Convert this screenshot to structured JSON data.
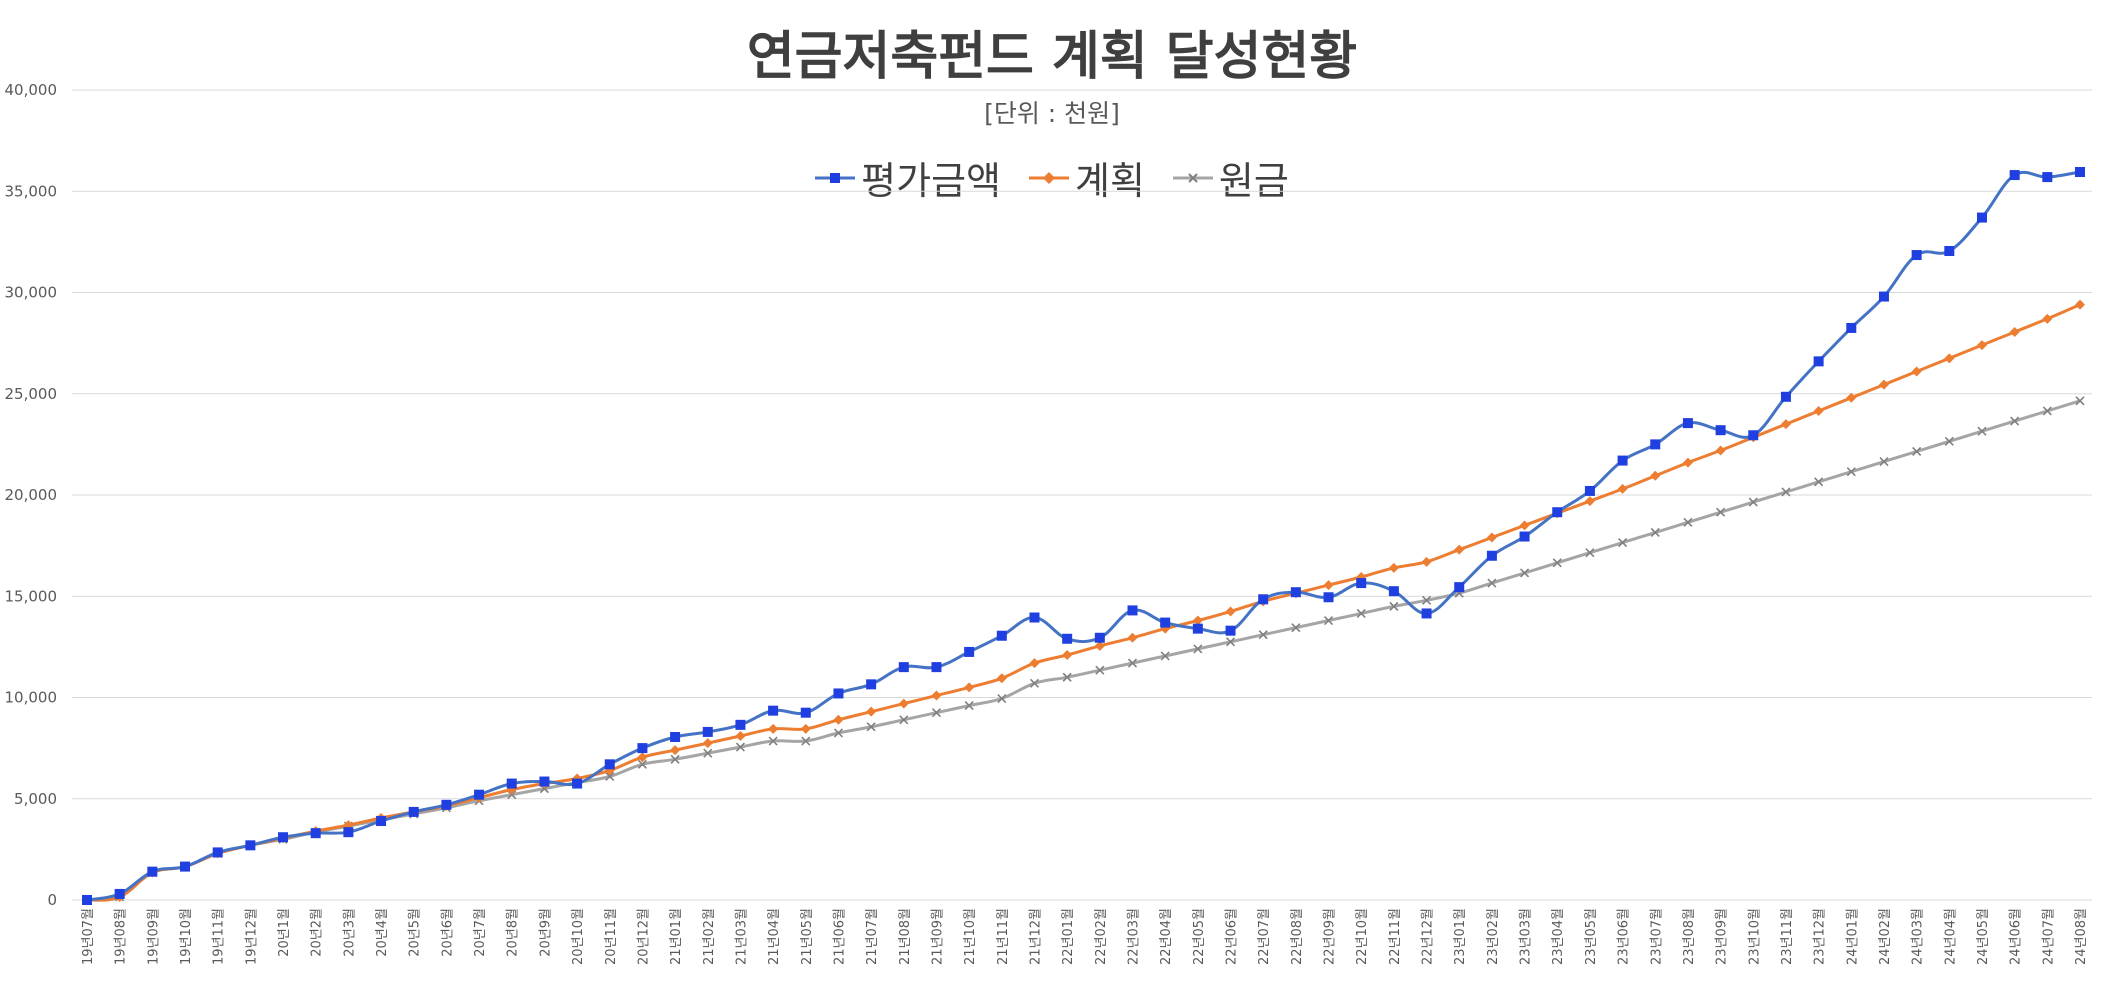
{
  "chart_data": {
    "type": "line",
    "title": "연금저축펀드 계획 달성현황",
    "subtitle": "[단위 : 천원]",
    "ylim": [
      0,
      40000
    ],
    "yticks": [
      0,
      5000,
      10000,
      15000,
      20000,
      25000,
      30000,
      35000,
      40000
    ],
    "ytick_labels": [
      "0",
      "5,000",
      "10,000",
      "15,000",
      "20,000",
      "25,000",
      "30,000",
      "35,000",
      "40,000"
    ],
    "grid": true,
    "legend_position": "top-center",
    "categories": [
      "19년07월",
      "19년08월",
      "19년09월",
      "19년10월",
      "19년11월",
      "19년12월",
      "20년1월",
      "20년2월",
      "20년3월",
      "20년4월",
      "20년5월",
      "20년6월",
      "20년7월",
      "20년8월",
      "20년9월",
      "20년10월",
      "20년11월",
      "20년12월",
      "21년01월",
      "21년02월",
      "21년03월",
      "21년04월",
      "21년05월",
      "21년06월",
      "21년07월",
      "21년08월",
      "21년09월",
      "21년10월",
      "21년11월",
      "21년12월",
      "22년01월",
      "22년02월",
      "22년03월",
      "22년04월",
      "22년05월",
      "22년06월",
      "22년07월",
      "22년08월",
      "22년09월",
      "22년10월",
      "22년11월",
      "22년12월",
      "23년01월",
      "23년02월",
      "23년03월",
      "23년04월",
      "23년05월",
      "23년06월",
      "23년07월",
      "23년08월",
      "23년09월",
      "23년10월",
      "23년11월",
      "23년12월",
      "24년01월",
      "24년02월",
      "24년03월",
      "24년04월",
      "24년05월",
      "24년06월",
      "24년07월",
      "24년08월"
    ],
    "series": [
      {
        "name": "평가금액",
        "color": "#4472c4",
        "marker": "square",
        "marker_color": "#1f3fe0",
        "values": [
          0,
          300,
          1400,
          1650,
          2350,
          2700,
          3100,
          3300,
          3350,
          3900,
          4350,
          4700,
          5200,
          5750,
          5850,
          5750,
          6700,
          7500,
          8050,
          8300,
          8650,
          9350,
          9250,
          10200,
          10650,
          11500,
          11500,
          12250,
          13050,
          13950,
          12900,
          12950,
          14300,
          13700,
          13400,
          13300,
          14850,
          15200,
          14950,
          15650,
          15250,
          14150,
          15450,
          17000,
          17950,
          19150,
          20200,
          21700,
          22500,
          23550,
          23200,
          22950,
          24850,
          26600,
          28250,
          29800,
          31850,
          32050,
          33700,
          35800,
          35700,
          35950
        ]
      },
      {
        "name": "계획",
        "color": "#ed7d31",
        "marker": "diamond",
        "marker_color": "#ed7d31",
        "values": [
          0,
          150,
          1350,
          1650,
          2300,
          2700,
          3050,
          3400,
          3700,
          4050,
          4350,
          4650,
          5050,
          5450,
          5750,
          6000,
          6400,
          7050,
          7400,
          7750,
          8100,
          8450,
          8450,
          8900,
          9300,
          9700,
          10100,
          10500,
          10950,
          11700,
          12100,
          12550,
          12950,
          13400,
          13800,
          14250,
          14750,
          15150,
          15550,
          15950,
          16400,
          16700,
          17300,
          17900,
          18500,
          19100,
          19700,
          20300,
          20950,
          21600,
          22200,
          22850,
          23500,
          24150,
          24800,
          25450,
          26100,
          26750,
          27400,
          28050,
          28700,
          29400
        ]
      },
      {
        "name": "원금",
        "color": "#a5a5a5",
        "marker": "x",
        "marker_color": "#808080",
        "values": [
          0,
          150,
          1350,
          1650,
          2300,
          2700,
          3000,
          3350,
          3650,
          3950,
          4250,
          4550,
          4900,
          5200,
          5500,
          5800,
          6100,
          6700,
          6950,
          7250,
          7550,
          7850,
          7850,
          8250,
          8550,
          8900,
          9250,
          9600,
          9950,
          10700,
          11000,
          11350,
          11700,
          12050,
          12400,
          12750,
          13100,
          13450,
          13800,
          14150,
          14500,
          14800,
          15150,
          15650,
          16150,
          16650,
          17150,
          17650,
          18150,
          18650,
          19150,
          19650,
          20150,
          20650,
          21150,
          21650,
          22150,
          22650,
          23150,
          23650,
          24150,
          24650
        ]
      }
    ]
  }
}
